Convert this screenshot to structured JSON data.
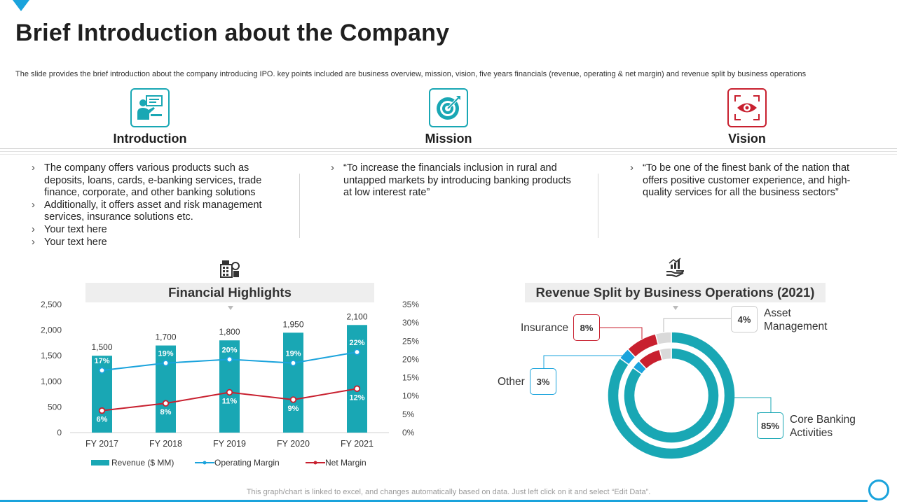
{
  "title": "Brief Introduction about the Company",
  "subtitle": "The slide provides the brief introduction about the company introducing IPO. key points included are business overview, mission, vision, five years financials (revenue, operating & net margin) and revenue split by business operations",
  "pillars": [
    {
      "heading": "Introduction",
      "icon": "presenter-icon"
    },
    {
      "heading": "Mission",
      "icon": "target-icon"
    },
    {
      "heading": "Vision",
      "icon": "eye-icon"
    }
  ],
  "introduction_points": [
    "The company offers various products such as deposits, loans, cards, e-banking services, trade finance, corporate, and other banking solutions",
    "Additionally,  it offers asset and risk management services, insurance solutions etc.",
    "Your text here",
    "Your text here"
  ],
  "mission_points": [
    "“To increase the financials inclusion in rural and untapped markets by introducing banking products at low interest rate”"
  ],
  "vision_points": [
    "“To be one of the finest bank of the nation that offers positive customer experience, and high-quality services for all the business sectors”"
  ],
  "bullet_glyph": "›",
  "colors": {
    "teal": "#19a7b4",
    "blue": "#1aa3dc",
    "red": "#c8202f",
    "grey": "#d9d9d9"
  },
  "chart_data": [
    {
      "type": "bar",
      "title": "Financial Highlights",
      "icon": "finance-icon",
      "categories": [
        "FY 2017",
        "FY 2018",
        "FY 2019",
        "FY 2020",
        "FY 2021"
      ],
      "series": [
        {
          "name": "Revenue ($ MM)",
          "type": "bar",
          "axis": "left",
          "values": [
            1500,
            1700,
            1800,
            1950,
            2100
          ],
          "labels": [
            "1,500",
            "1,700",
            "1,800",
            "1,950",
            "2,100"
          ],
          "color": "#19a7b4"
        },
        {
          "name": "Operating Margin",
          "type": "line",
          "axis": "right",
          "values": [
            17,
            19,
            20,
            19,
            22
          ],
          "labels": [
            "17%",
            "19%",
            "20%",
            "19%",
            "22%"
          ],
          "color": "#1aa3dc"
        },
        {
          "name": "Net Margin",
          "type": "line",
          "axis": "right",
          "values": [
            6,
            8,
            11,
            9,
            12
          ],
          "labels": [
            "6%",
            "8%",
            "11%",
            "9%",
            "12%"
          ],
          "color": "#c8202f"
        }
      ],
      "ylim": [
        0,
        2500
      ],
      "yticks": [
        "2,500",
        "2,000",
        "1,500",
        "1,000",
        "500",
        "0"
      ],
      "y2lim": [
        0,
        35
      ],
      "y2ticks": [
        "35%",
        "30%",
        "25%",
        "20%",
        "15%",
        "10%",
        "5%",
        "0%"
      ],
      "legend": "bottom"
    },
    {
      "type": "pie",
      "subtype": "doughnut",
      "title": "Revenue Split by Business Operations (2021)",
      "icon": "revenue-hand-icon",
      "slices": [
        {
          "name": "Core Banking Activities",
          "value": 85,
          "label": "85%",
          "color": "#19a7b4"
        },
        {
          "name": "Other",
          "value": 3,
          "label": "3%",
          "color": "#1aa3dc"
        },
        {
          "name": "Insurance",
          "value": 8,
          "label": "8%",
          "color": "#c8202f"
        },
        {
          "name": "Asset Management",
          "value": 4,
          "label": "4%",
          "color": "#d9d9d9"
        }
      ]
    }
  ],
  "pie_labels": {
    "core_line1": "Core Banking",
    "core_line2": "Activities",
    "other": "Other",
    "insurance": "Insurance",
    "asset_line1": "Asset",
    "asset_line2": "Management"
  },
  "footnote": "This graph/chart is linked to excel,  and changes automatically based on data. Just left click on it and select “Edit Data”."
}
